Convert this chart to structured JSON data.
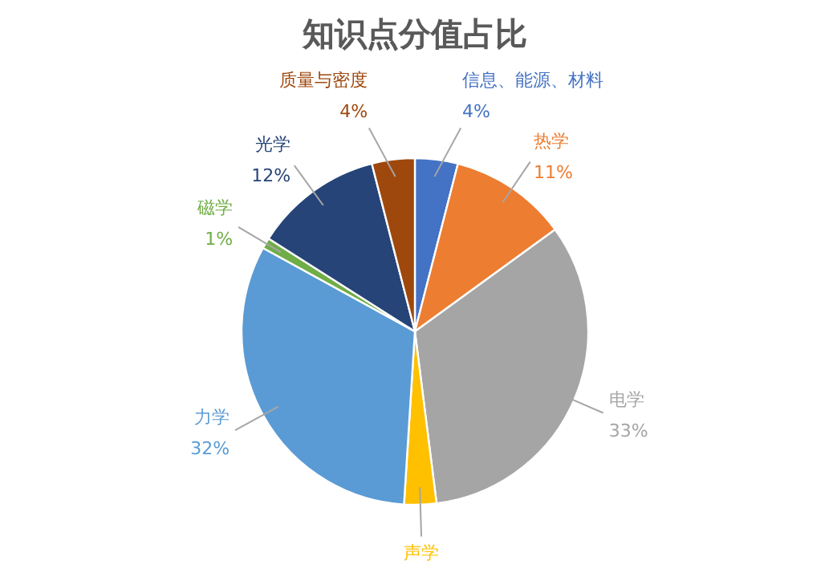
{
  "chart_data": {
    "type": "pie",
    "title": "知识点分值占比",
    "categories": [
      "信息、能源、材料",
      "热学",
      "电学",
      "声学",
      "力学",
      "磁学",
      "光学",
      "质量与密度"
    ],
    "values": [
      4,
      11,
      33,
      3,
      32,
      1,
      12,
      4
    ],
    "value_labels": [
      "4%",
      "11%",
      "33%",
      null,
      "32%",
      "1%",
      "12%",
      "4%"
    ],
    "colors": [
      "#4472c4",
      "#ed7d31",
      "#a5a5a5",
      "#ffc000",
      "#5b9bd5",
      "#70ad47",
      "#264478",
      "#9e480e"
    ]
  }
}
